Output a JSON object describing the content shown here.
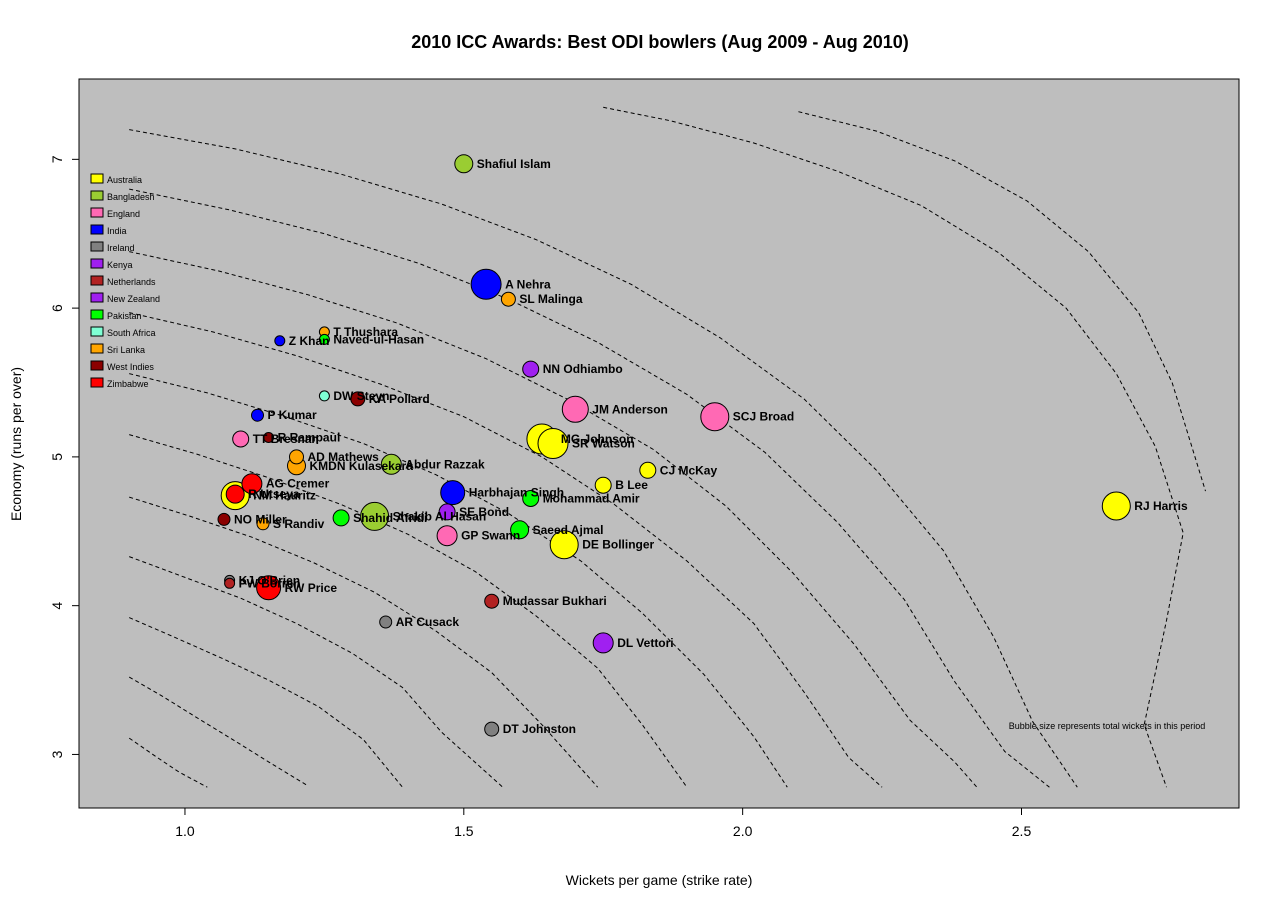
{
  "chart_data": {
    "type": "scatter",
    "title": "2010 ICC Awards: Best ODI bowlers (Aug 2009 - Aug 2010)",
    "xlabel": "Wickets per game (strike rate)",
    "ylabel": "Economy (runs per over)",
    "xlim": [
      0.81,
      2.89
    ],
    "ylim": [
      2.64,
      7.54
    ],
    "x_ticks": [
      1.0,
      1.5,
      2.0,
      2.5
    ],
    "x_tick_labels": [
      "1.0",
      "1.5",
      "2.0",
      "2.5"
    ],
    "y_ticks": [
      3,
      4,
      5,
      6,
      7
    ],
    "y_tick_labels": [
      "3",
      "4",
      "5",
      "6",
      "7"
    ],
    "grid": false,
    "note": "Bubble size represents total wickets in this period",
    "legend_position": "top-left",
    "teams": [
      {
        "name": "Australia",
        "color": "#ffff00"
      },
      {
        "name": "Bangladesh",
        "color": "#9acd32"
      },
      {
        "name": "England",
        "color": "#ff69b4"
      },
      {
        "name": "India",
        "color": "#0000ff"
      },
      {
        "name": "Ireland",
        "color": "#808080"
      },
      {
        "name": "Kenya",
        "color": "#a020f0"
      },
      {
        "name": "Netherlands",
        "color": "#b22222"
      },
      {
        "name": "New Zealand",
        "color": "#a020f0"
      },
      {
        "name": "Pakistan",
        "color": "#00ff00"
      },
      {
        "name": "South Africa",
        "color": "#7fffd4"
      },
      {
        "name": "Sri Lanka",
        "color": "#ffa500"
      },
      {
        "name": "West Indies",
        "color": "#8b0000"
      },
      {
        "name": "Zimbabwe",
        "color": "#ff0000"
      }
    ],
    "points": [
      {
        "name": "Shafiul Islam",
        "team": "Bangladesh",
        "x": 1.5,
        "y": 6.97,
        "r": 9
      },
      {
        "name": "A Nehra",
        "team": "India",
        "x": 1.54,
        "y": 6.16,
        "r": 15
      },
      {
        "name": "SL Malinga",
        "team": "Sri Lanka",
        "x": 1.58,
        "y": 6.06,
        "r": 7
      },
      {
        "name": "T Thushara",
        "team": "Sri Lanka",
        "x": 1.25,
        "y": 5.84,
        "r": 5
      },
      {
        "name": "Z Khan",
        "team": "India",
        "x": 1.17,
        "y": 5.78,
        "r": 5
      },
      {
        "name": "Naved-ul-Hasan",
        "team": "Pakistan",
        "x": 1.25,
        "y": 5.79,
        "r": 5
      },
      {
        "name": "NN Odhiambo",
        "team": "Kenya",
        "x": 1.62,
        "y": 5.59,
        "r": 8
      },
      {
        "name": "DW Steyn",
        "team": "South Africa",
        "x": 1.25,
        "y": 5.41,
        "r": 5
      },
      {
        "name": "KA Pollard",
        "team": "West Indies",
        "x": 1.31,
        "y": 5.39,
        "r": 7
      },
      {
        "name": "JM Anderson",
        "team": "England",
        "x": 1.7,
        "y": 5.32,
        "r": 13
      },
      {
        "name": "SCJ Broad",
        "team": "England",
        "x": 1.95,
        "y": 5.27,
        "r": 14
      },
      {
        "name": "P Kumar",
        "team": "India",
        "x": 1.13,
        "y": 5.28,
        "r": 6
      },
      {
        "name": "TT Bresnan",
        "team": "England",
        "x": 1.1,
        "y": 5.12,
        "r": 8
      },
      {
        "name": "R Rampaul",
        "team": "West Indies",
        "x": 1.15,
        "y": 5.13,
        "r": 5
      },
      {
        "name": "MG Johnson",
        "team": "Australia",
        "x": 1.64,
        "y": 5.12,
        "r": 15
      },
      {
        "name": "SR Watson",
        "team": "Australia",
        "x": 1.66,
        "y": 5.09,
        "r": 15
      },
      {
        "name": "AD Mathews",
        "team": "Sri Lanka",
        "x": 1.2,
        "y": 5.0,
        "r": 7
      },
      {
        "name": "KMDN Kulasekara",
        "team": "Sri Lanka",
        "x": 1.2,
        "y": 4.94,
        "r": 9
      },
      {
        "name": "Abdur Razzak",
        "team": "Bangladesh",
        "x": 1.37,
        "y": 4.95,
        "r": 10
      },
      {
        "name": "CJ McKay",
        "team": "Australia",
        "x": 1.83,
        "y": 4.91,
        "r": 8
      },
      {
        "name": "B Lee",
        "team": "Australia",
        "x": 1.75,
        "y": 4.81,
        "r": 8
      },
      {
        "name": "AG Cremer",
        "team": "Zimbabwe",
        "x": 1.12,
        "y": 4.82,
        "r": 10
      },
      {
        "name": "Harbhajan Singh",
        "team": "India",
        "x": 1.48,
        "y": 4.76,
        "r": 12
      },
      {
        "name": "NM Hauritz",
        "team": "Australia",
        "x": 1.09,
        "y": 4.74,
        "r": 14
      },
      {
        "name": "R Utseya",
        "team": "Zimbabwe",
        "x": 1.09,
        "y": 4.75,
        "r": 9
      },
      {
        "name": "Mohammad Amir",
        "team": "Pakistan",
        "x": 1.62,
        "y": 4.72,
        "r": 8
      },
      {
        "name": "SE Bond",
        "team": "New Zealand",
        "x": 1.47,
        "y": 4.63,
        "r": 8
      },
      {
        "name": "Shakib Al Hasan",
        "team": "Bangladesh",
        "x": 1.34,
        "y": 4.6,
        "r": 14
      },
      {
        "name": "RJ Harris",
        "team": "Australia",
        "x": 2.67,
        "y": 4.67,
        "r": 14
      },
      {
        "name": "Shahid Afridi",
        "team": "Pakistan",
        "x": 1.28,
        "y": 4.59,
        "r": 8
      },
      {
        "name": "NO Miller",
        "team": "West Indies",
        "x": 1.07,
        "y": 4.58,
        "r": 6
      },
      {
        "name": "S Randiv",
        "team": "Sri Lanka",
        "x": 1.14,
        "y": 4.55,
        "r": 6
      },
      {
        "name": "Saeed Ajmal",
        "team": "Pakistan",
        "x": 1.6,
        "y": 4.51,
        "r": 9
      },
      {
        "name": "GP Swann",
        "team": "England",
        "x": 1.47,
        "y": 4.47,
        "r": 10
      },
      {
        "name": "DE Bollinger",
        "team": "Australia",
        "x": 1.68,
        "y": 4.41,
        "r": 14
      },
      {
        "name": "KJ O'Brien",
        "team": "Ireland",
        "x": 1.08,
        "y": 4.17,
        "r": 5
      },
      {
        "name": "PW Borren",
        "team": "Netherlands",
        "x": 1.08,
        "y": 4.15,
        "r": 5
      },
      {
        "name": "RW Price",
        "team": "Zimbabwe",
        "x": 1.15,
        "y": 4.12,
        "r": 12
      },
      {
        "name": "Mudassar Bukhari",
        "team": "Netherlands",
        "x": 1.55,
        "y": 4.03,
        "r": 7
      },
      {
        "name": "AR Cusack",
        "team": "Ireland",
        "x": 1.36,
        "y": 3.89,
        "r": 6
      },
      {
        "name": "DL Vettori",
        "team": "New Zealand",
        "x": 1.75,
        "y": 3.75,
        "r": 10
      },
      {
        "name": "DT Johnston",
        "team": "Ireland",
        "x": 1.55,
        "y": 3.17,
        "r": 7
      }
    ],
    "contour_lines": [
      [
        [
          0.9,
          3.11
        ],
        [
          0.95,
          2.98
        ],
        [
          0.99,
          2.88
        ],
        [
          1.04,
          2.78
        ]
      ],
      [
        [
          0.9,
          3.52
        ],
        [
          0.96,
          3.39
        ],
        [
          1.02,
          3.25
        ],
        [
          1.09,
          3.09
        ],
        [
          1.15,
          2.95
        ],
        [
          1.22,
          2.79
        ]
      ],
      [
        [
          0.9,
          3.92
        ],
        [
          0.98,
          3.79
        ],
        [
          1.07,
          3.64
        ],
        [
          1.15,
          3.5
        ],
        [
          1.24,
          3.32
        ],
        [
          1.32,
          3.1
        ],
        [
          1.39,
          2.78
        ]
      ],
      [
        [
          0.9,
          4.33
        ],
        [
          1.0,
          4.19
        ],
        [
          1.1,
          4.05
        ],
        [
          1.2,
          3.88
        ],
        [
          1.3,
          3.68
        ],
        [
          1.39,
          3.45
        ],
        [
          1.46,
          3.15
        ],
        [
          1.57,
          2.78
        ]
      ],
      [
        [
          0.9,
          4.73
        ],
        [
          1.01,
          4.6
        ],
        [
          1.12,
          4.46
        ],
        [
          1.23,
          4.29
        ],
        [
          1.34,
          4.09
        ],
        [
          1.45,
          3.83
        ],
        [
          1.55,
          3.55
        ],
        [
          1.64,
          3.2
        ],
        [
          1.74,
          2.78
        ]
      ],
      [
        [
          0.9,
          5.15
        ],
        [
          1.02,
          5.02
        ],
        [
          1.15,
          4.86
        ],
        [
          1.28,
          4.68
        ],
        [
          1.4,
          4.48
        ],
        [
          1.52,
          4.23
        ],
        [
          1.63,
          3.93
        ],
        [
          1.74,
          3.58
        ],
        [
          1.82,
          3.2
        ],
        [
          1.9,
          2.78
        ]
      ],
      [
        [
          0.9,
          5.56
        ],
        [
          1.04,
          5.43
        ],
        [
          1.18,
          5.27
        ],
        [
          1.32,
          5.09
        ],
        [
          1.45,
          4.88
        ],
        [
          1.58,
          4.62
        ],
        [
          1.71,
          4.3
        ],
        [
          1.82,
          3.95
        ],
        [
          1.93,
          3.54
        ],
        [
          2.02,
          3.12
        ],
        [
          2.08,
          2.78
        ]
      ],
      [
        [
          0.9,
          5.97
        ],
        [
          1.05,
          5.84
        ],
        [
          1.2,
          5.68
        ],
        [
          1.35,
          5.49
        ],
        [
          1.5,
          5.27
        ],
        [
          1.64,
          5.0
        ],
        [
          1.77,
          4.68
        ],
        [
          1.9,
          4.3
        ],
        [
          2.02,
          3.88
        ],
        [
          2.11,
          3.42
        ],
        [
          2.19,
          2.98
        ],
        [
          2.25,
          2.78
        ]
      ],
      [
        [
          0.9,
          6.38
        ],
        [
          1.06,
          6.25
        ],
        [
          1.22,
          6.09
        ],
        [
          1.38,
          5.9
        ],
        [
          1.54,
          5.66
        ],
        [
          1.69,
          5.38
        ],
        [
          1.84,
          5.05
        ],
        [
          1.97,
          4.67
        ],
        [
          2.09,
          4.22
        ],
        [
          2.2,
          3.74
        ],
        [
          2.3,
          3.23
        ],
        [
          2.38,
          2.95
        ],
        [
          2.42,
          2.78
        ]
      ],
      [
        [
          0.9,
          6.8
        ],
        [
          1.08,
          6.66
        ],
        [
          1.25,
          6.5
        ],
        [
          1.42,
          6.3
        ],
        [
          1.58,
          6.06
        ],
        [
          1.74,
          5.77
        ],
        [
          1.9,
          5.42
        ],
        [
          2.04,
          5.03
        ],
        [
          2.17,
          4.56
        ],
        [
          2.29,
          4.04
        ],
        [
          2.38,
          3.49
        ],
        [
          2.47,
          3.02
        ],
        [
          2.55,
          2.78
        ]
      ],
      [
        [
          0.9,
          7.2
        ],
        [
          1.09,
          7.07
        ],
        [
          1.28,
          6.9
        ],
        [
          1.46,
          6.7
        ],
        [
          1.63,
          6.46
        ],
        [
          1.8,
          6.16
        ],
        [
          1.96,
          5.8
        ],
        [
          2.11,
          5.39
        ],
        [
          2.24,
          4.91
        ],
        [
          2.36,
          4.37
        ],
        [
          2.45,
          3.79
        ],
        [
          2.52,
          3.22
        ],
        [
          2.6,
          2.78
        ]
      ],
      [
        [
          1.75,
          7.35
        ],
        [
          1.87,
          7.26
        ],
        [
          2.02,
          7.11
        ],
        [
          2.17,
          6.92
        ],
        [
          2.32,
          6.69
        ],
        [
          2.46,
          6.37
        ],
        [
          2.58,
          6.0
        ],
        [
          2.67,
          5.56
        ],
        [
          2.74,
          5.07
        ],
        [
          2.79,
          4.49
        ],
        [
          2.76,
          3.9
        ],
        [
          2.72,
          3.2
        ],
        [
          2.76,
          2.78
        ]
      ],
      [
        [
          2.1,
          7.32
        ],
        [
          2.24,
          7.19
        ],
        [
          2.38,
          6.99
        ],
        [
          2.51,
          6.72
        ],
        [
          2.62,
          6.38
        ],
        [
          2.71,
          5.97
        ],
        [
          2.77,
          5.5
        ],
        [
          2.83,
          4.77
        ]
      ]
    ]
  }
}
